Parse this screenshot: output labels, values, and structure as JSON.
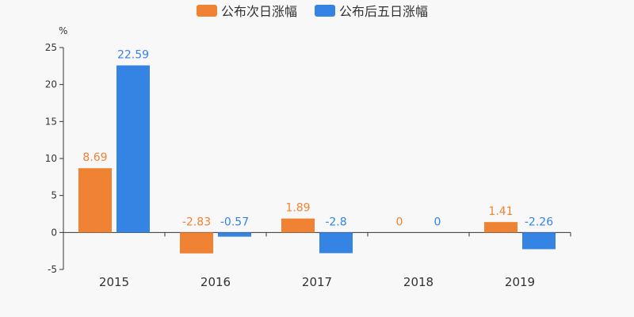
{
  "chart_data": {
    "type": "bar",
    "categories": [
      "2015",
      "2016",
      "2017",
      "2018",
      "2019"
    ],
    "series": [
      {
        "name": "公布次日涨幅",
        "color": "#f08234",
        "values": [
          8.69,
          -2.83,
          1.89,
          0,
          1.41
        ]
      },
      {
        "name": "公布后五日涨幅",
        "color": "#3584e4",
        "values": [
          22.59,
          -0.57,
          -2.8,
          0,
          -2.26
        ]
      }
    ],
    "ylabel": "%",
    "ylim": [
      -5,
      25
    ],
    "yticks": [
      -5,
      0,
      5,
      10,
      15,
      20,
      25
    ],
    "legend": "top-center",
    "grid": false
  }
}
